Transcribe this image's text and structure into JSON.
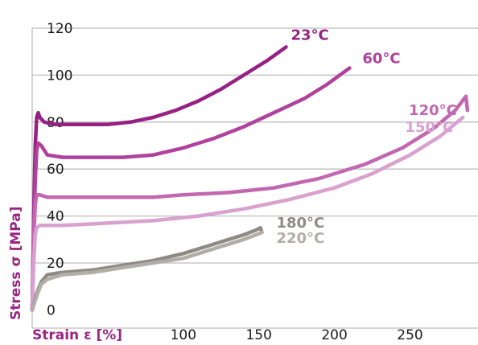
{
  "chart_data": {
    "type": "line",
    "title": "",
    "xlabel": "Strain ε [%]",
    "ylabel": "Stress σ [MPa]",
    "xlim": [
      0,
      295
    ],
    "ylim": [
      -5,
      120
    ],
    "x_ticks": [
      100,
      150,
      200,
      250
    ],
    "y_ticks": [
      0,
      20,
      40,
      60,
      80,
      100,
      120
    ],
    "grid": "horizontal",
    "legend": "inline labels at line ends",
    "axis_title_color": "#9a2585",
    "tick_color": "#1a1a1a",
    "series": [
      {
        "name": "23°C",
        "color": "#962084",
        "points": [
          [
            0,
            0
          ],
          [
            1,
            40
          ],
          [
            2,
            70
          ],
          [
            3,
            82
          ],
          [
            4,
            84
          ],
          [
            5,
            82
          ],
          [
            8,
            80
          ],
          [
            15,
            79
          ],
          [
            30,
            79
          ],
          [
            50,
            79
          ],
          [
            65,
            80
          ],
          [
            80,
            82
          ],
          [
            95,
            85
          ],
          [
            110,
            89
          ],
          [
            125,
            94
          ],
          [
            140,
            100
          ],
          [
            155,
            106
          ],
          [
            168,
            112
          ]
        ]
      },
      {
        "name": "60°C",
        "color": "#b0419d",
        "points": [
          [
            0,
            0
          ],
          [
            1,
            35
          ],
          [
            2,
            55
          ],
          [
            3,
            68
          ],
          [
            4,
            71
          ],
          [
            6,
            70
          ],
          [
            10,
            66
          ],
          [
            20,
            65
          ],
          [
            40,
            65
          ],
          [
            60,
            65
          ],
          [
            80,
            66
          ],
          [
            100,
            69
          ],
          [
            120,
            73
          ],
          [
            140,
            78
          ],
          [
            160,
            84
          ],
          [
            180,
            90
          ],
          [
            195,
            96
          ],
          [
            210,
            103
          ]
        ]
      },
      {
        "name": "120°C",
        "color": "#c267b1",
        "points": [
          [
            0,
            0
          ],
          [
            1,
            30
          ],
          [
            2,
            45
          ],
          [
            3,
            49
          ],
          [
            5,
            49
          ],
          [
            10,
            48
          ],
          [
            30,
            48
          ],
          [
            50,
            48
          ],
          [
            80,
            48
          ],
          [
            100,
            49
          ],
          [
            130,
            50
          ],
          [
            160,
            52
          ],
          [
            190,
            56
          ],
          [
            220,
            62
          ],
          [
            245,
            69
          ],
          [
            265,
            77
          ],
          [
            280,
            85
          ],
          [
            287,
            91
          ],
          [
            288,
            85
          ]
        ]
      },
      {
        "name": "150°C",
        "color": "#d9a1cf",
        "points": [
          [
            0,
            0
          ],
          [
            1,
            20
          ],
          [
            2,
            32
          ],
          [
            3,
            35
          ],
          [
            5,
            36
          ],
          [
            20,
            36
          ],
          [
            50,
            37
          ],
          [
            80,
            38
          ],
          [
            110,
            40
          ],
          [
            140,
            43
          ],
          [
            170,
            47
          ],
          [
            200,
            52
          ],
          [
            225,
            58
          ],
          [
            250,
            66
          ],
          [
            270,
            74
          ],
          [
            285,
            82
          ]
        ]
      },
      {
        "name": "180°C",
        "color": "#8e8a84",
        "points": [
          [
            0,
            0
          ],
          [
            3,
            7
          ],
          [
            6,
            12
          ],
          [
            10,
            15
          ],
          [
            20,
            16
          ],
          [
            40,
            17
          ],
          [
            60,
            19
          ],
          [
            80,
            21
          ],
          [
            100,
            24
          ],
          [
            115,
            27
          ],
          [
            130,
            30
          ],
          [
            140,
            32
          ],
          [
            148,
            34
          ],
          [
            151,
            35
          ],
          [
            152,
            33
          ]
        ]
      },
      {
        "name": "220°C",
        "color": "#b1ada7",
        "points": [
          [
            0,
            0
          ],
          [
            3,
            6
          ],
          [
            6,
            11
          ],
          [
            10,
            13
          ],
          [
            20,
            15
          ],
          [
            40,
            16
          ],
          [
            60,
            18
          ],
          [
            80,
            20
          ],
          [
            100,
            22
          ],
          [
            115,
            25
          ],
          [
            130,
            28
          ],
          [
            140,
            30
          ],
          [
            148,
            32
          ],
          [
            152,
            33
          ]
        ]
      }
    ]
  }
}
